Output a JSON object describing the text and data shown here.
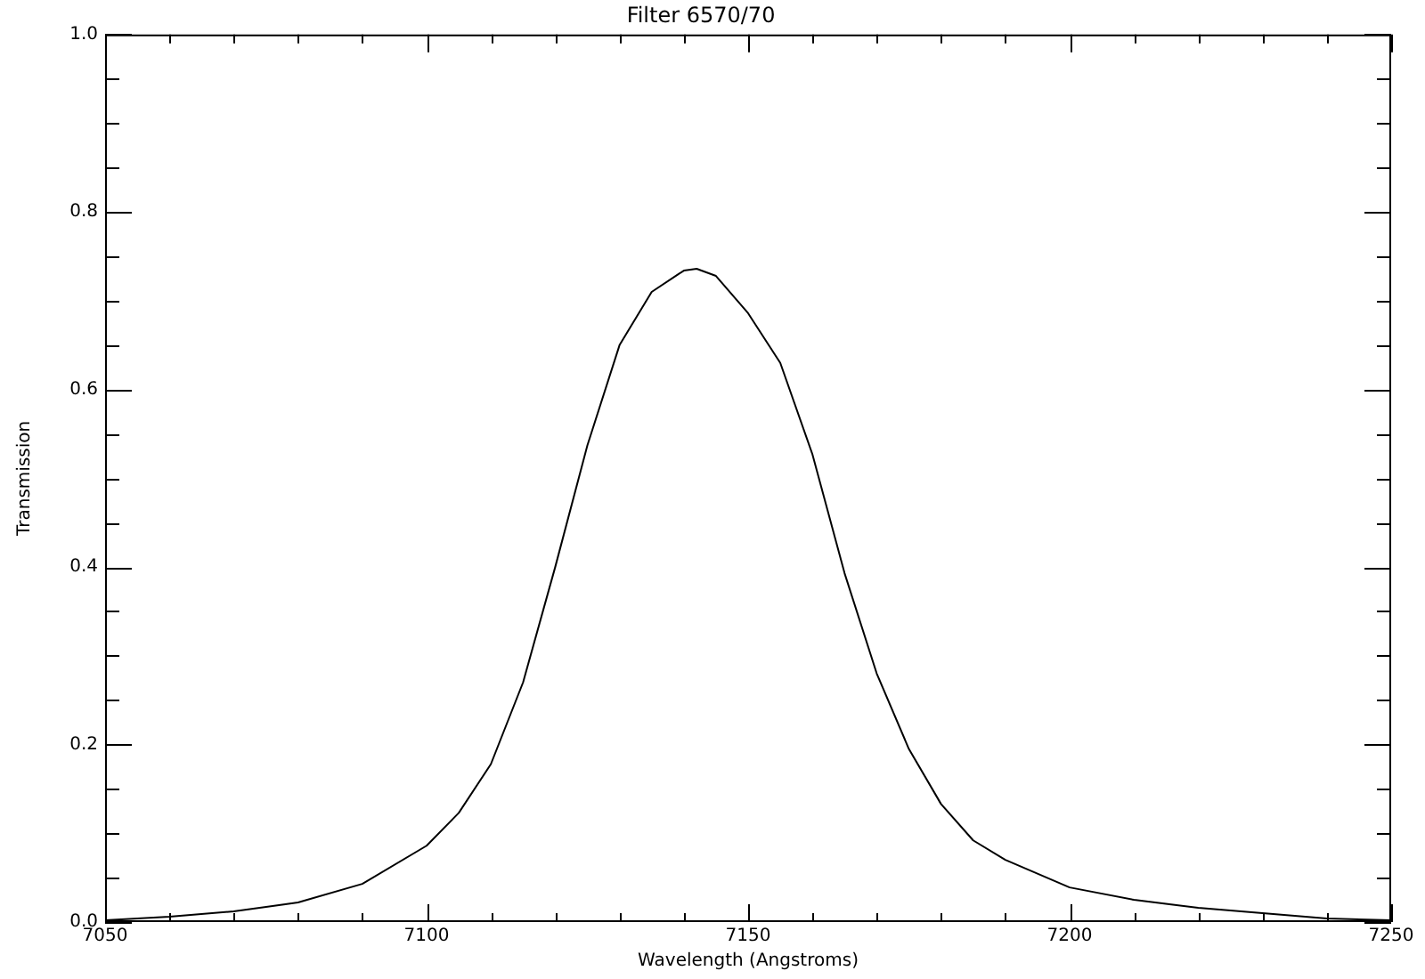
{
  "chart_data": {
    "type": "line",
    "title": "Filter 6570/70",
    "xlabel": "Wavelength (Angstroms)",
    "ylabel": "Transmission",
    "x": [
      7050,
      7060,
      7070,
      7080,
      7090,
      7100,
      7105,
      7110,
      7115,
      7120,
      7125,
      7130,
      7135,
      7140,
      7142,
      7145,
      7150,
      7155,
      7160,
      7165,
      7170,
      7175,
      7180,
      7185,
      7190,
      7200,
      7210,
      7220,
      7230,
      7240,
      7250
    ],
    "series": [
      {
        "color": "#000000",
        "values": [
          0.002,
          0.006,
          0.012,
          0.022,
          0.043,
          0.086,
          0.123,
          0.178,
          0.27,
          0.4,
          0.537,
          0.65,
          0.71,
          0.734,
          0.736,
          0.728,
          0.686,
          0.63,
          0.527,
          0.393,
          0.28,
          0.195,
          0.133,
          0.092,
          0.07,
          0.039,
          0.025,
          0.016,
          0.01,
          0.004,
          0.002
        ]
      }
    ],
    "xlim": [
      7050,
      7250
    ],
    "xticks": [
      7050,
      {
        "value": 7060,
        "label": null
      },
      {
        "value": 7070,
        "label": null
      },
      {
        "value": 7080,
        "label": null
      },
      {
        "value": 7090,
        "label": null
      },
      7100,
      {
        "value": 7110,
        "label": null
      },
      {
        "value": 7120,
        "label": null
      },
      {
        "value": 7130,
        "label": null
      },
      {
        "value": 7140,
        "label": null
      },
      7150,
      {
        "value": 7160,
        "label": null
      },
      {
        "value": 7170,
        "label": null
      },
      {
        "value": 7180,
        "label": null
      },
      {
        "value": 7190,
        "label": null
      },
      7200,
      {
        "value": 7210,
        "label": null
      },
      {
        "value": 7220,
        "label": null
      },
      {
        "value": 7230,
        "label": null
      },
      {
        "value": 7240,
        "label": null
      },
      7250
    ],
    "ylim": [
      0,
      1
    ],
    "yticks": [
      {
        "value": 0,
        "label": "0.0"
      },
      {
        "value": 0.05,
        "label": null
      },
      {
        "value": 0.1,
        "label": null
      },
      {
        "value": 0.15,
        "label": null
      },
      {
        "value": 0.2,
        "label": "0.2"
      },
      {
        "value": 0.25,
        "label": null
      },
      {
        "value": 0.3,
        "label": null
      },
      {
        "value": 0.35,
        "label": null
      },
      {
        "value": 0.4,
        "label": "0.4"
      },
      {
        "value": 0.45,
        "label": null
      },
      {
        "value": 0.5,
        "label": null
      },
      {
        "value": 0.55,
        "label": null
      },
      {
        "value": 0.6,
        "label": "0.6"
      },
      {
        "value": 0.65,
        "label": null
      },
      {
        "value": 0.7,
        "label": null
      },
      {
        "value": 0.75,
        "label": null
      },
      {
        "value": 0.8,
        "label": "0.8"
      },
      {
        "value": 0.85,
        "label": null
      },
      {
        "value": 0.9,
        "label": null
      },
      {
        "value": 0.95,
        "label": null
      },
      {
        "value": 1,
        "label": "1.0"
      }
    ],
    "grid": false,
    "legend": false,
    "marker": "none",
    "line_style": "solid"
  }
}
